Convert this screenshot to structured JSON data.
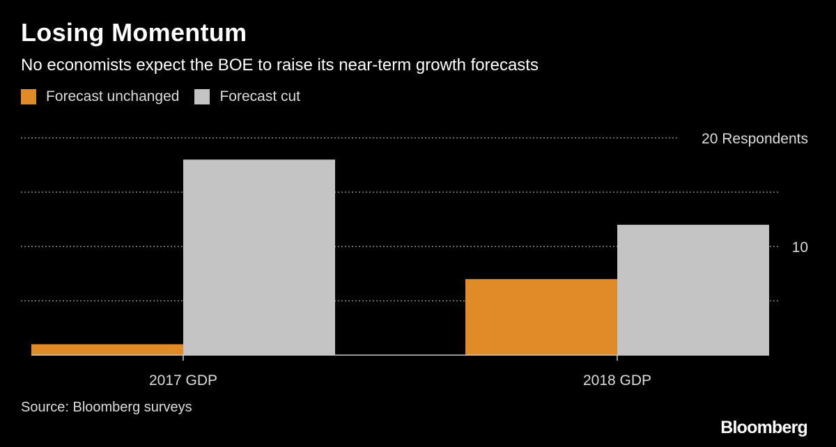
{
  "title": "Losing Momentum",
  "subtitle": "No economists expect the BOE to raise its near-term growth forecasts",
  "source": "Source: Bloomberg surveys",
  "logo": "Bloomberg",
  "colors": {
    "background": "#000000",
    "forecast_unchanged": "#E08B28",
    "forecast_cut": "#C4C4C4",
    "grid": "#8A8A8A"
  },
  "chart_data": {
    "type": "bar",
    "categories": [
      "2017 GDP",
      "2018 GDP"
    ],
    "series": [
      {
        "name": "Forecast unchanged",
        "values": [
          1,
          7
        ],
        "color": "#E08B28"
      },
      {
        "name": "Forecast cut",
        "values": [
          18,
          12
        ],
        "color": "#C4C4C4"
      }
    ],
    "ylim": [
      0,
      20
    ],
    "y_ticks": [
      5,
      10,
      15,
      20
    ],
    "y_tick_labels": [
      "",
      "10",
      "",
      "20 Respondents"
    ],
    "grid": true,
    "legend_placement": "top-left"
  }
}
